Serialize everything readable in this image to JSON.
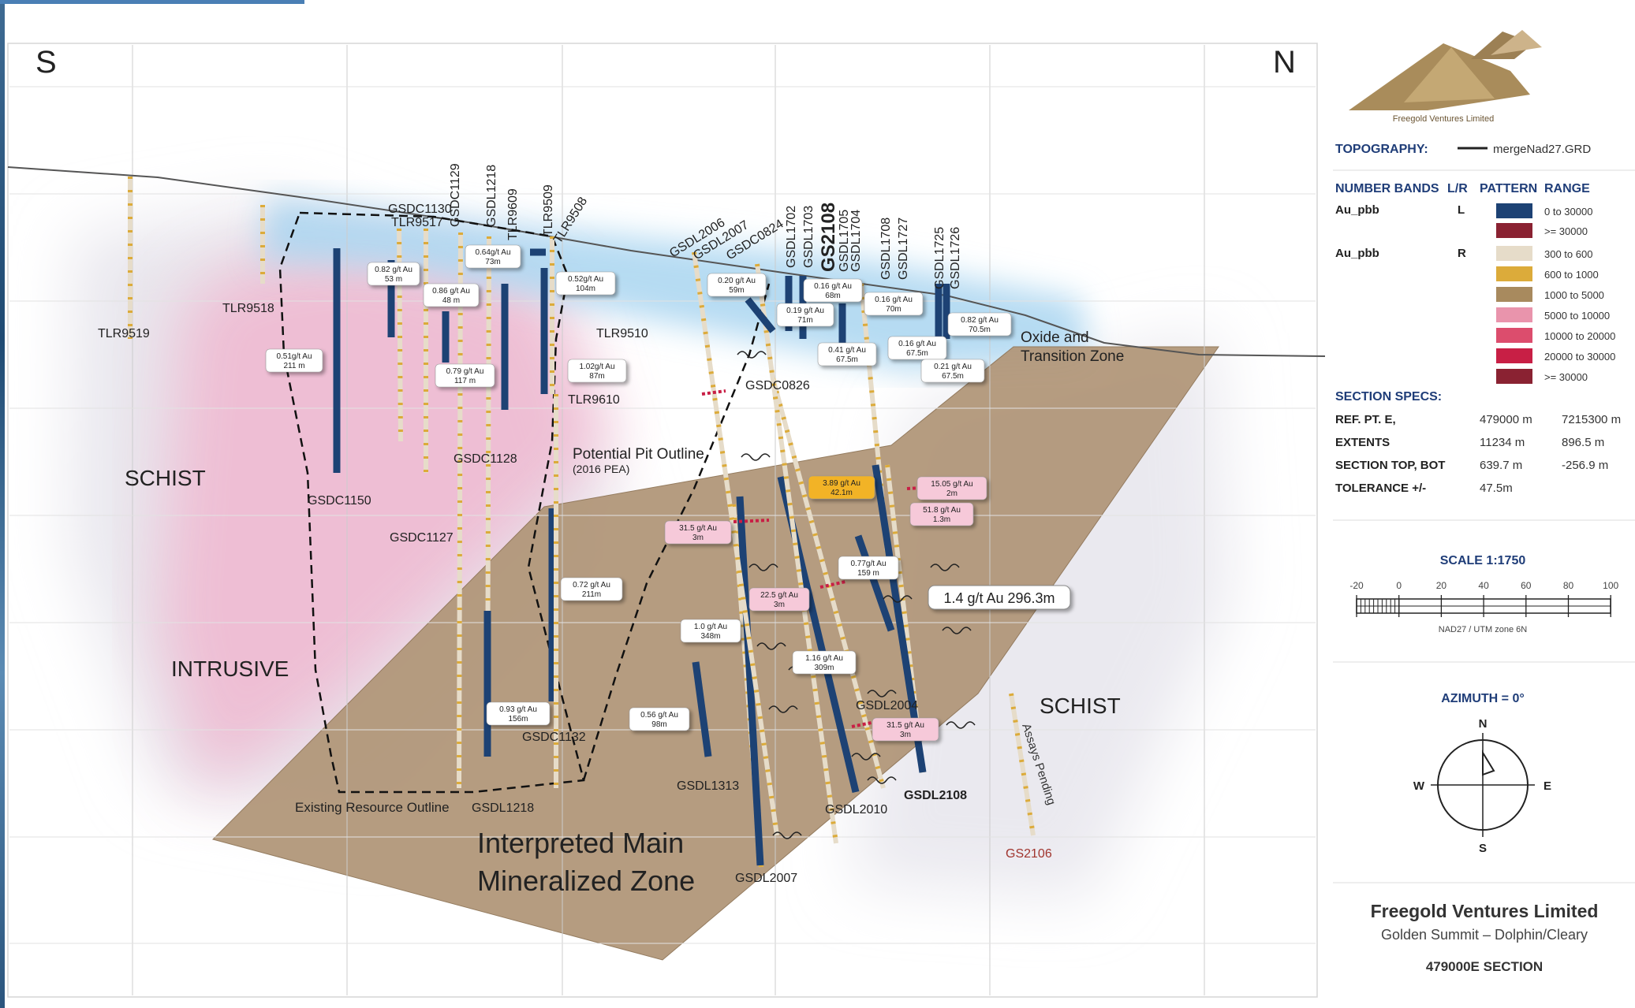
{
  "compass_s": "S",
  "compass_n": "N",
  "drillholes": [
    "TLR9519",
    "TLR9518",
    "GSDC1130",
    "TLR9517",
    "GSDC1129",
    "GSDL1218",
    "TLR9609",
    "TLR9509",
    "TLR9508",
    "TLR9510",
    "TLR9610",
    "GSDL2006",
    "GSDL2007",
    "GSDC0824",
    "GSDL1702",
    "GSDL1703",
    "GS2108",
    "GSDL1705",
    "GSDL1704",
    "GSDL1708",
    "GSDL1727",
    "GSDL1725",
    "GSDL1726",
    "GSDC0826",
    "GSDC1150",
    "GSDC1128",
    "GSDC1127",
    "GSDC1132",
    "GSDL1218",
    "GSDL1313",
    "GSDL2004",
    "GSDL2010",
    "GSDL2108",
    "GSDL2007",
    "GS2106"
  ],
  "intercepts": [
    {
      "line1": "0.82 g/t Au",
      "line2": "53 m"
    },
    {
      "line1": "0.64g/t Au",
      "line2": "73m"
    },
    {
      "line1": "0.86 g/t Au",
      "line2": "48 m"
    },
    {
      "line1": "0.52g/t Au",
      "line2": "104m"
    },
    {
      "line1": "0.51g/t Au",
      "line2": "211 m"
    },
    {
      "line1": "0.79 g/t Au",
      "line2": "117 m"
    },
    {
      "line1": "1.02g/t Au",
      "line2": "87m"
    },
    {
      "line1": "0.20 g/t Au",
      "line2": "59m"
    },
    {
      "line1": "0.16 g/t Au",
      "line2": "68m"
    },
    {
      "line1": "0.19 g/t Au",
      "line2": "71m"
    },
    {
      "line1": "0.16 g/t Au",
      "line2": "70m"
    },
    {
      "line1": "0.82 g/t Au",
      "line2": "70.5m"
    },
    {
      "line1": "0.41 g/t Au",
      "line2": "67.5m"
    },
    {
      "line1": "0.16 g/t Au",
      "line2": "67.5m"
    },
    {
      "line1": "0.21 g/t Au",
      "line2": "67.5m"
    },
    {
      "line1": "3.89 g/t Au",
      "line2": "42.1m"
    },
    {
      "line1": "15.05 g/t Au",
      "line2": "2m"
    },
    {
      "line1": "51.8 g/t Au",
      "line2": "1.3m"
    },
    {
      "line1": "31.5 g/t Au",
      "line2": "3m"
    },
    {
      "line1": "0.77g/t Au",
      "line2": "159 m"
    },
    {
      "line1": "0.72 g/t Au",
      "line2": "211m"
    },
    {
      "line1": "22.5 g/t Au",
      "line2": "3m"
    },
    {
      "line1": "1.0 g/t Au",
      "line2": "348m"
    },
    {
      "line1": "1.16 g/t Au",
      "line2": "309m"
    },
    {
      "line1": "0.93 g/t Au",
      "line2": "156m"
    },
    {
      "line1": "0.56 g/t Au",
      "line2": "98m"
    },
    {
      "line1": "31.5 g/t Au",
      "line2": "3m"
    }
  ],
  "headline_intercept": "1.4 g/t Au 296.3m",
  "zones": {
    "oxide_1": "Oxide and",
    "oxide_2": "Transition Zone",
    "schist_left": "SCHIST",
    "schist_right": "SCHIST",
    "intrusive": "INTRUSIVE",
    "pit_1": "Potential Pit Outline",
    "pit_2": "(2016 PEA)",
    "resource": "Existing Resource Outline",
    "main_1": "Interpreted Main",
    "main_2": "Mineralized Zone",
    "assays": "Assays Pending"
  },
  "legend": {
    "company": "Freegold Ventures Limited",
    "topo_label": "TOPOGRAPHY:",
    "topo_value": "mergeNad27.GRD",
    "h_bands": "NUMBER BANDS",
    "h_lr": "L/R",
    "h_pattern": "PATTERN",
    "h_range": "RANGE",
    "band_l_name": "Au_pbb",
    "band_l_side": "L",
    "band_r_name": "Au_pbb",
    "band_r_side": "R",
    "ranges_l": [
      {
        "range": "0 to 30000",
        "color": "#1d4274"
      },
      {
        "range": ">= 30000",
        "color": "#8a2232"
      }
    ],
    "ranges_r": [
      {
        "range": "300 to 600",
        "color": "#e6dcc9"
      },
      {
        "range": "600 to 1000",
        "color": "#dcab3a"
      },
      {
        "range": "1000 to 5000",
        "color": "#a88a5e"
      },
      {
        "range": "5000 to 10000",
        "color": "#e994ac"
      },
      {
        "range": "10000 to 20000",
        "color": "#dc4d6d"
      },
      {
        "range": "20000 to 30000",
        "color": "#c81f45"
      },
      {
        "range": ">= 30000",
        "color": "#8a2232"
      }
    ],
    "specs_title": "SECTION SPECS:",
    "spec_ref_label": "REF. PT.  E,",
    "spec_ref_e": "479000 m",
    "spec_ref_n": "7215300 m",
    "spec_ext_label": "EXTENTS",
    "spec_ext_1": "11234 m",
    "spec_ext_2": "896.5 m",
    "spec_top_label": "SECTION TOP, BOT",
    "spec_top_1": "639.7 m",
    "spec_top_2": "-256.9 m",
    "spec_tol_label": "TOLERANCE  +/-",
    "spec_tol": "47.5m",
    "scale_title": "SCALE 1:1750",
    "scale_ticks": [
      "-20",
      "0",
      "20",
      "40",
      "60",
      "80",
      "100"
    ],
    "scale_note": "NAD27 / UTM zone 6N",
    "azimuth": "AZIMUTH = 0°",
    "dir_n": "N",
    "dir_s": "S",
    "dir_w": "W",
    "dir_e": "E",
    "title_1": "Freegold Ventures Limited",
    "title_2": "Golden Summit – Dolphin/Cleary",
    "title_3": "479000E SECTION"
  }
}
